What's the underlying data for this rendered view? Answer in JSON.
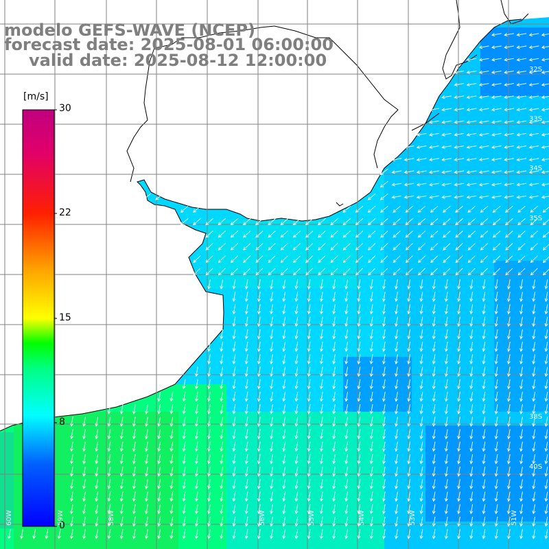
{
  "title": {
    "model": "modelo GEFS-WAVE (NCEP)",
    "forecast": "forecast date: 2025-08-01 06:00:00",
    "valid": "valid date: 2025-08-12 12:00:00"
  },
  "colorbar": {
    "unit": "[m/s]",
    "ticks": [
      "30",
      "22",
      "15",
      "8",
      "0"
    ],
    "tick_values": [
      30,
      22,
      15,
      8,
      0
    ],
    "range": [
      0,
      30
    ]
  },
  "grid": {
    "lat_labels": [
      "32S",
      "33S",
      "34S",
      "35S",
      "38S",
      "40S"
    ],
    "lon_labels": [
      "60W",
      "59W",
      "58W",
      "56W",
      "55W",
      "54W",
      "53W",
      "51W"
    ]
  },
  "colors": {
    "land": "#ffffff",
    "coast": "#000000",
    "grid": "#808080",
    "arrows": "#ffffff",
    "title": "#7f7f7f"
  },
  "chart_data": {
    "type": "heatmap",
    "title": "modelo GEFS-WAVE (NCEP)",
    "variable": "wind speed with direction arrows",
    "unit": "[m/s]",
    "colorscale_range": [
      0,
      30
    ],
    "wind_direction_note": "arrows point mainly southward (SSW) over open ocean, westward near coast in northeast",
    "speed_zones": [
      {
        "region": "southwest shelf",
        "approx_speed": 11
      },
      {
        "region": "central ocean",
        "approx_speed": 8
      },
      {
        "region": "east / southeast ocean",
        "approx_speed": 6
      }
    ]
  }
}
